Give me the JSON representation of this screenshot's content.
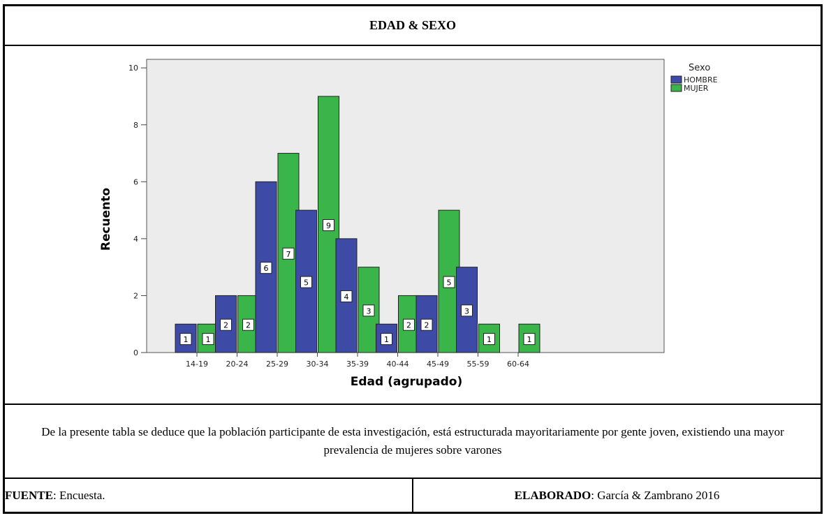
{
  "title": "EDAD & SEXO",
  "description": "De la presente tabla se deduce que la población participante de esta investigación,  está estructurada mayoritariamente por gente joven, existiendo una mayor prevalencia de mujeres sobre varones",
  "footer": {
    "source_label": "FUENTE",
    "source_value": ": Encuesta.",
    "made_label": "ELABORADO",
    "made_value": ": García & Zambrano 2016"
  },
  "chart_data": {
    "type": "bar",
    "xlabel": "Edad (agrupado)",
    "ylabel": "Recuento",
    "ylim": [
      0,
      10
    ],
    "yticks": [
      "0",
      "2",
      "4",
      "6",
      "8",
      "10"
    ],
    "grid": false,
    "legend": {
      "title": "Sexo",
      "placement": "top-right"
    },
    "categories": [
      "14-19",
      "20-24",
      "25-29",
      "30-34",
      "35-39",
      "40-44",
      "45-49",
      "55-59",
      "60-64"
    ],
    "series": [
      {
        "name": "HOMBRE",
        "color": "#3d4aa6",
        "values": [
          1,
          2,
          6,
          5,
          4,
          1,
          2,
          3,
          null
        ]
      },
      {
        "name": "MUJER",
        "color": "#3ab54a",
        "values": [
          1,
          2,
          7,
          9,
          3,
          2,
          5,
          1,
          1
        ]
      }
    ],
    "plot_background": "#ececec"
  }
}
